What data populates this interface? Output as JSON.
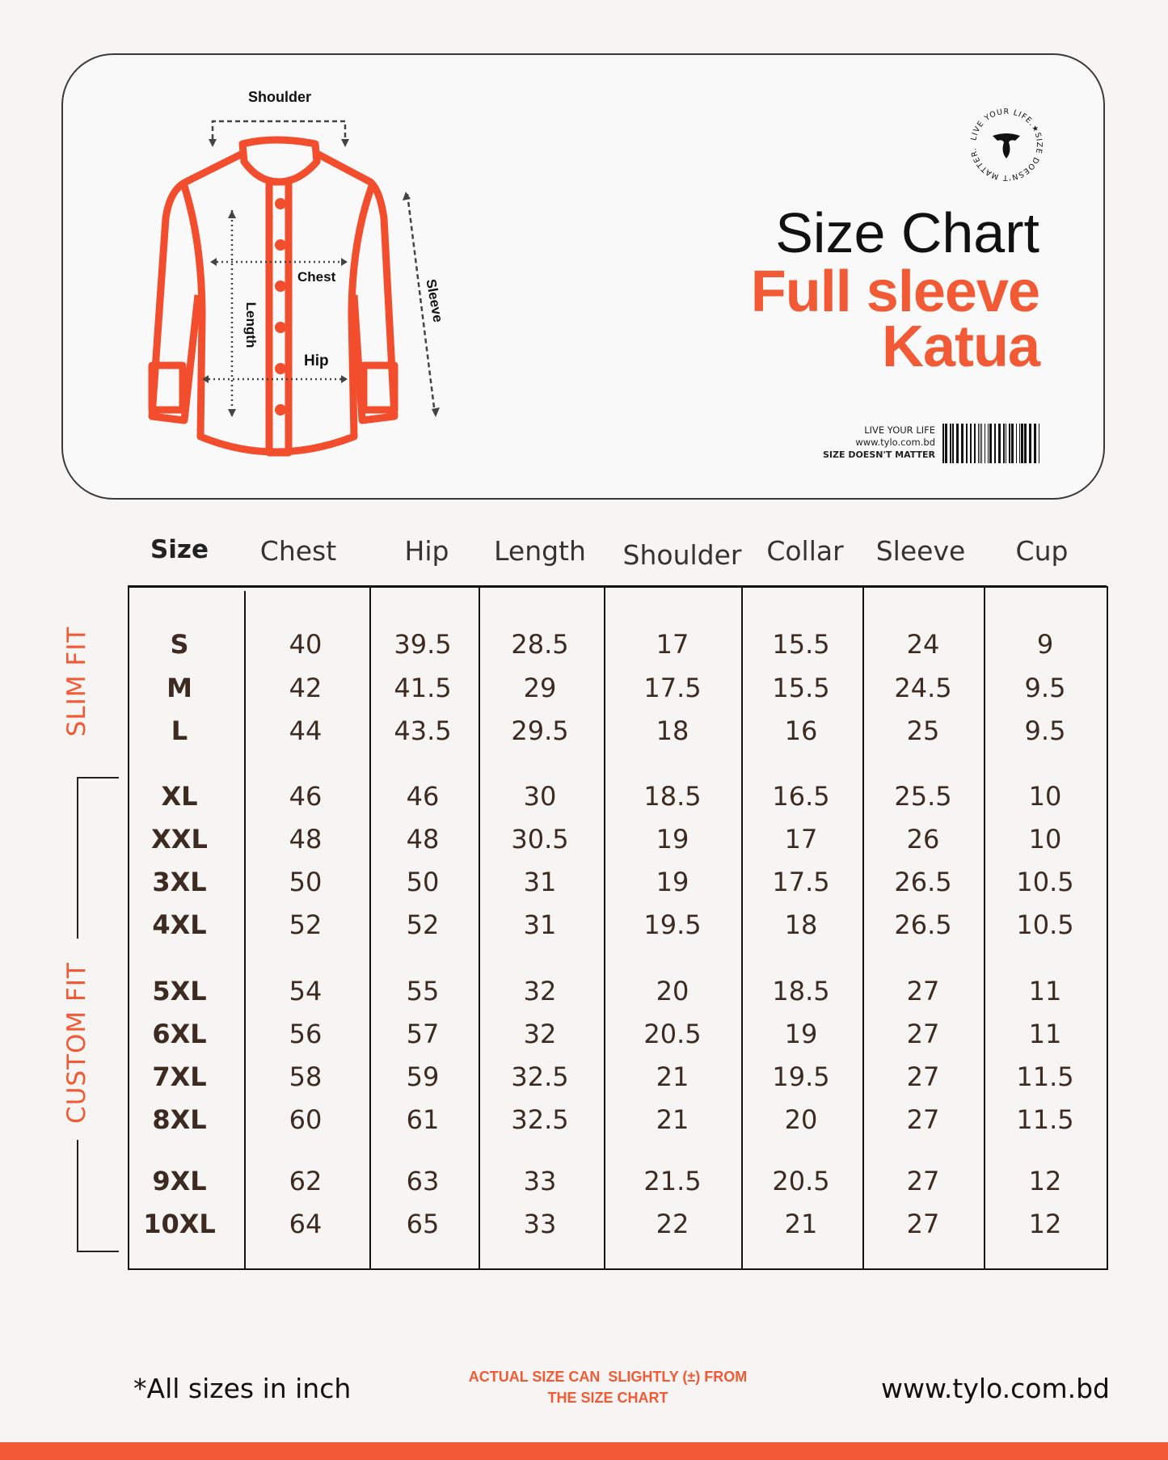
{
  "header": {
    "title": "Size Chart",
    "product_line1": "Full sleeve",
    "product_line2": "Katua",
    "tagline1": "LIVE YOUR LIFE",
    "tagline2": "www.tylo.com.bd",
    "tagline3": "SIZE DOESN'T MATTER",
    "badge_text": "LIVE YOUR LIFE.★SIZE DOESN'T MATTER."
  },
  "diagram": {
    "labels": {
      "shoulder": "Shoulder",
      "chest": "Chest",
      "length": "Length",
      "hip": "Hip",
      "sleeve": "Sleeve"
    }
  },
  "table": {
    "columns": [
      "Size",
      "Chest",
      "Hip",
      "Length",
      "Shoulder",
      "Collar",
      "Sleeve",
      "Cup"
    ],
    "rows": [
      [
        "S",
        "40",
        "39.5",
        "28.5",
        "17",
        "15.5",
        "24",
        "9"
      ],
      [
        "M",
        "42",
        "41.5",
        "29",
        "17.5",
        "15.5",
        "24.5",
        "9.5"
      ],
      [
        "L",
        "44",
        "43.5",
        "29.5",
        "18",
        "16",
        "25",
        "9.5"
      ],
      [
        "XL",
        "46",
        "46",
        "30",
        "18.5",
        "16.5",
        "25.5",
        "10"
      ],
      [
        "XXL",
        "48",
        "48",
        "30.5",
        "19",
        "17",
        "26",
        "10"
      ],
      [
        "3XL",
        "50",
        "50",
        "31",
        "19",
        "17.5",
        "26.5",
        "10.5"
      ],
      [
        "4XL",
        "52",
        "52",
        "31",
        "19.5",
        "18",
        "26.5",
        "10.5"
      ],
      [
        "5XL",
        "54",
        "55",
        "32",
        "20",
        "18.5",
        "27",
        "11"
      ],
      [
        "6XL",
        "56",
        "57",
        "32",
        "20.5",
        "19",
        "27",
        "11"
      ],
      [
        "7XL",
        "58",
        "59",
        "32.5",
        "21",
        "19.5",
        "27",
        "11.5"
      ],
      [
        "8XL",
        "60",
        "61",
        "32.5",
        "21",
        "20",
        "27",
        "11.5"
      ],
      [
        "9XL",
        "62",
        "63",
        "33",
        "21.5",
        "20.5",
        "27",
        "12"
      ],
      [
        "10XL",
        "64",
        "65",
        "33",
        "22",
        "21",
        "27",
        "12"
      ]
    ],
    "groups": {
      "slim": "SLIM FIT",
      "custom": "CUSTOM FIT"
    }
  },
  "footer": {
    "note": "*All sizes in inch",
    "disclaimer_line1": "ACTUAL SIZE CAN  SLIGHTLY (±) FROM",
    "disclaimer_line2": "THE SIZE CHART",
    "website": "www.tylo.com.bd"
  },
  "colors": {
    "accent": "#f15a35",
    "text": "#3d2b22"
  }
}
